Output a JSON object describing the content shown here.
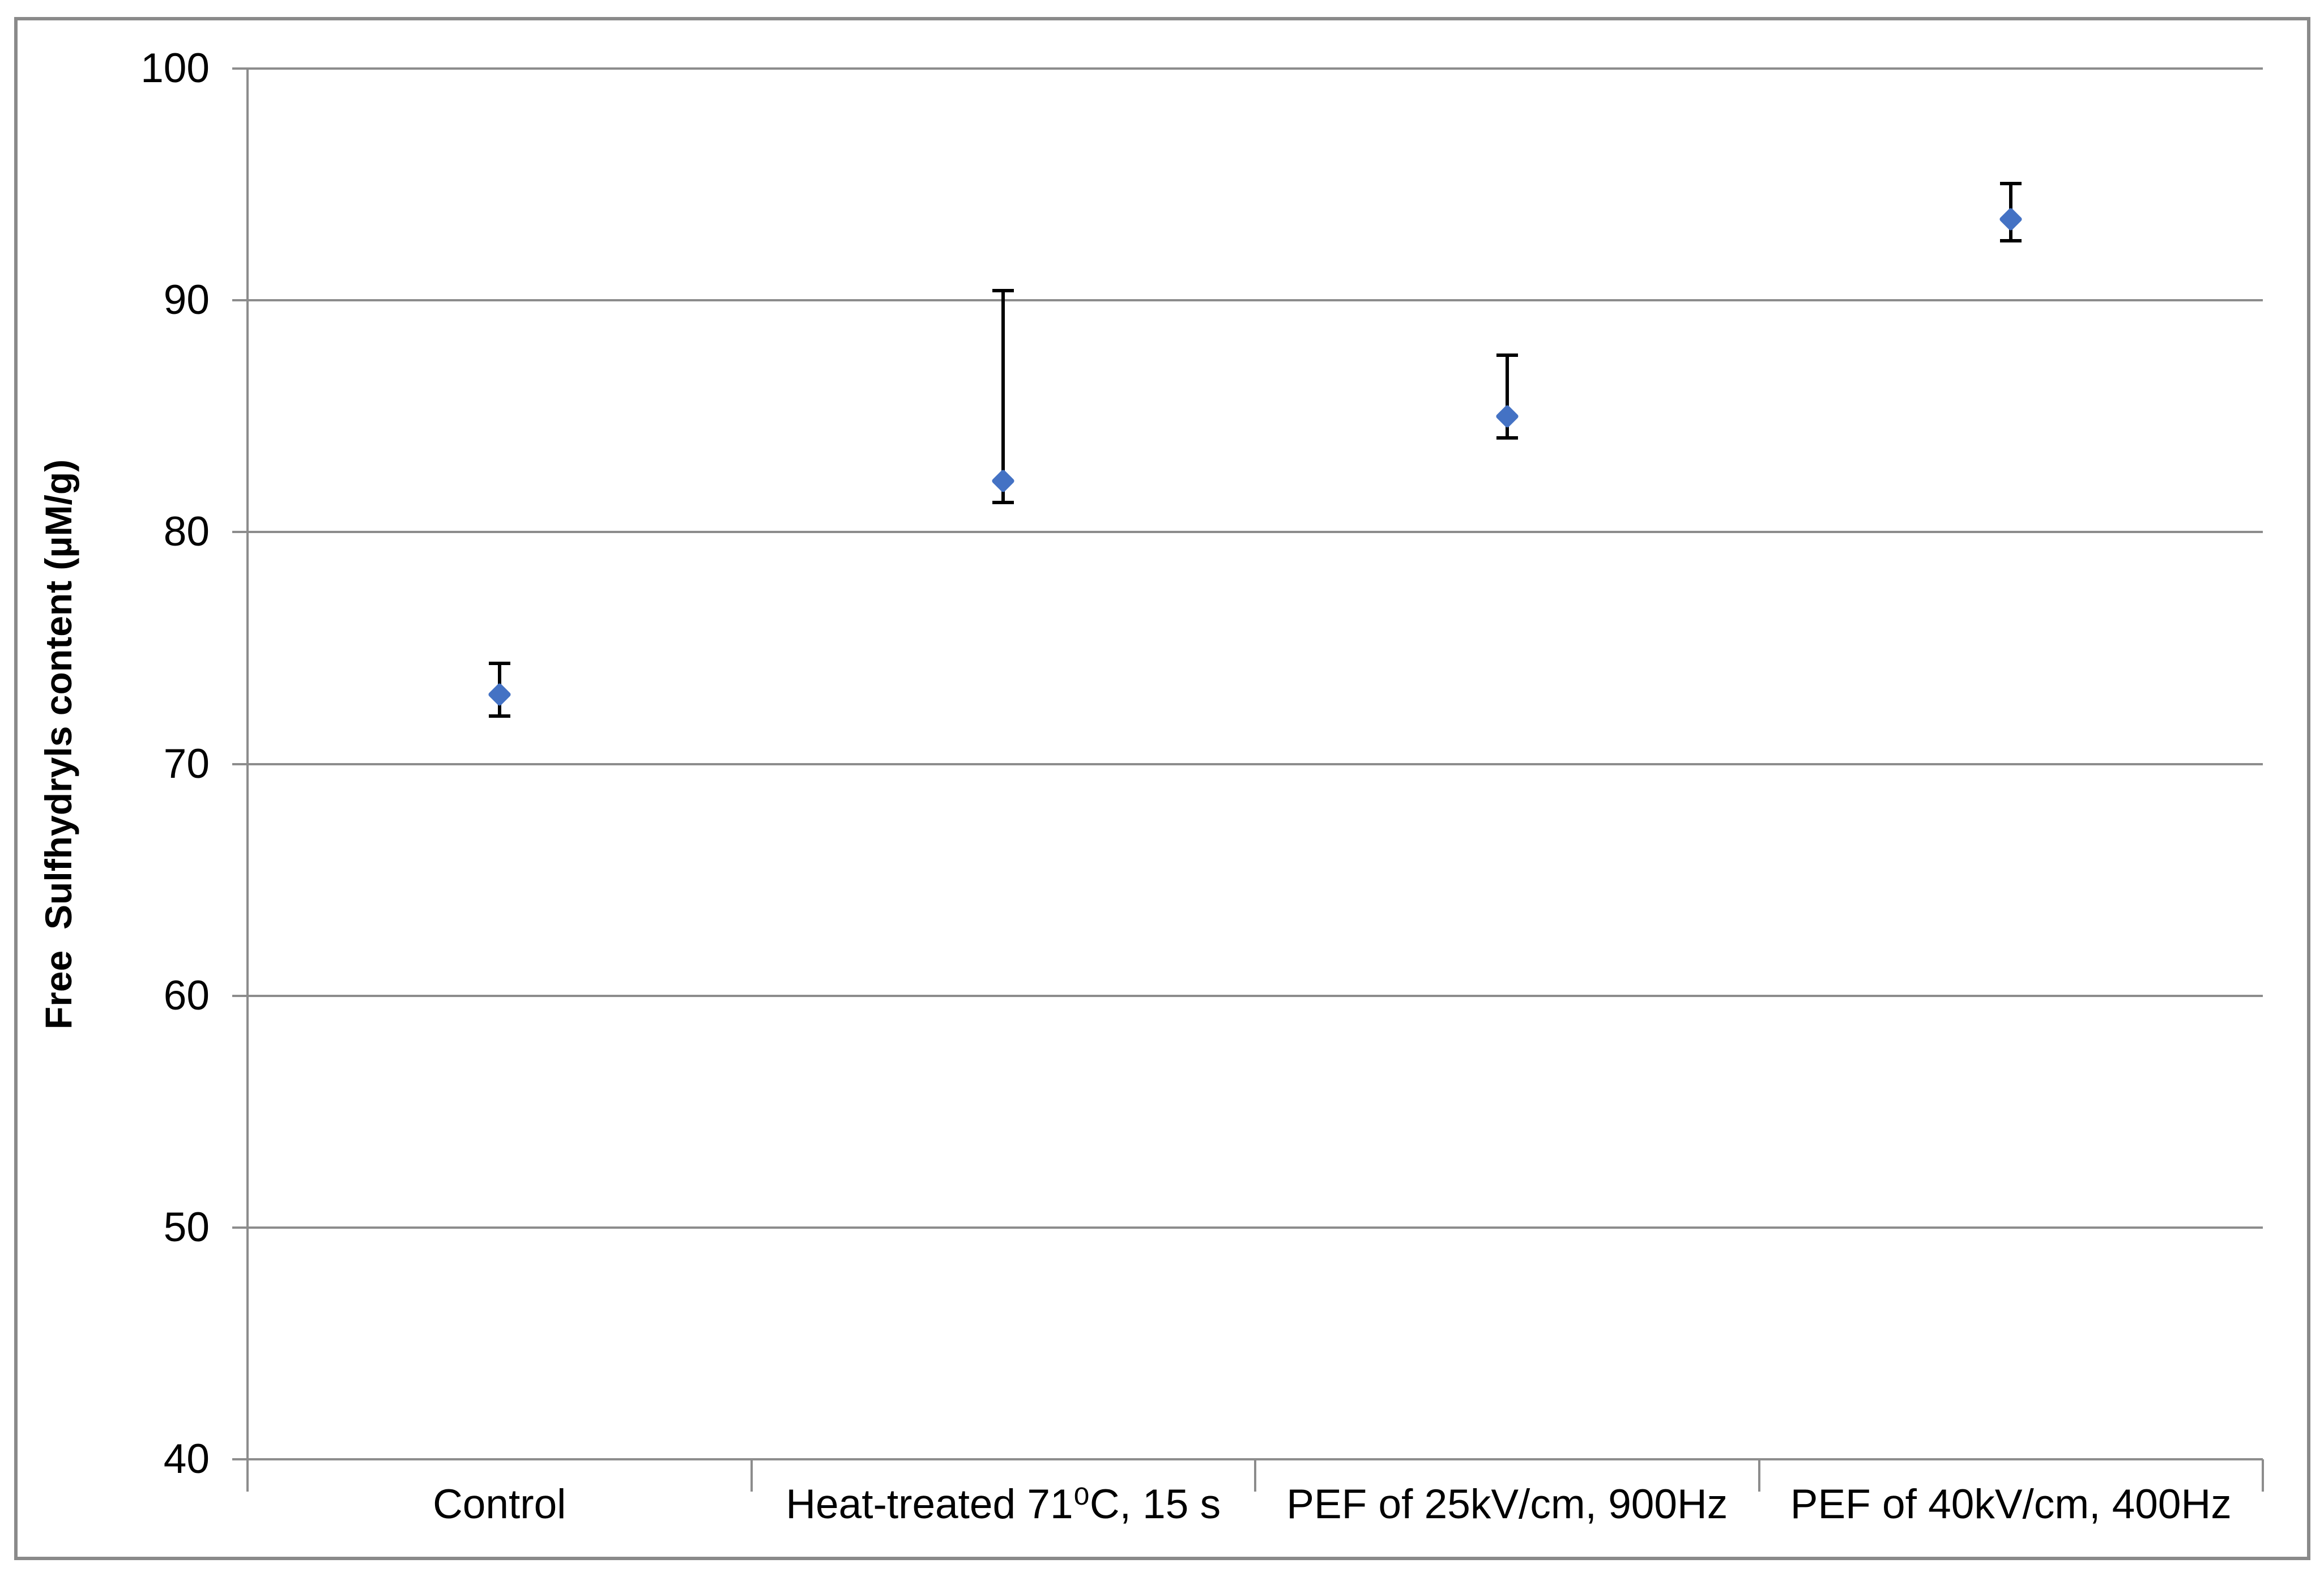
{
  "figure": {
    "background_color": "#ffffff",
    "frame_color": "#8a8a8a",
    "axis_color": "#8c8c8c",
    "marker_color": "#4472C4",
    "error_bar_color": "#000000"
  },
  "chart_data": {
    "type": "scatter",
    "title": "",
    "xlabel": "",
    "ylabel": "Free  Sulfhydryls content (µM/g)",
    "ylim": [
      40,
      100
    ],
    "yticks": [
      40,
      50,
      60,
      70,
      80,
      90,
      100
    ],
    "grid": "horizontal",
    "legend": "none",
    "marker": "diamond",
    "categories": [
      "Control",
      "Heat-treated 71⁰C, 15 s",
      "PEF of 25kV/cm, 900Hz",
      "PEF of 40kV/cm, 400Hz"
    ],
    "series": [
      {
        "name": "Free sulfhydryls content",
        "color": "#4472C4",
        "points": [
          {
            "category": "Control",
            "value": 73.0,
            "error_upper": 74.4,
            "error_lower": 72.0
          },
          {
            "category": "Heat-treated 71⁰C, 15 s",
            "value": 82.2,
            "error_upper": 90.5,
            "error_lower": 81.2
          },
          {
            "category": "PEF of 25kV/cm, 900Hz",
            "value": 85.0,
            "error_upper": 87.7,
            "error_lower": 84.0
          },
          {
            "category": "PEF of 40kV/cm, 400Hz",
            "value": 93.5,
            "error_upper": 95.1,
            "error_lower": 92.5
          }
        ]
      }
    ]
  }
}
